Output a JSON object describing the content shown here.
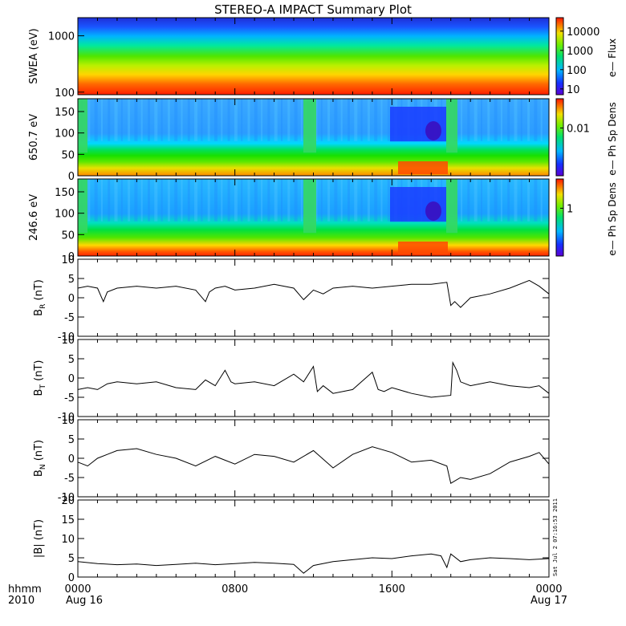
{
  "title": "STEREO-A IMPACT Summary Plot",
  "footer": {
    "left_top": "hhmm",
    "left_bottom": "2010",
    "date_start": "Aug 16",
    "date_end": "Aug 17"
  },
  "timestamp_text": "Sat Jul  2 07:16:53 2011",
  "colors": {
    "line": "#000000",
    "axis": "#000000",
    "spectrum_low": "#1a00d9",
    "spectrum_high": "#ff1400"
  },
  "chart_data": [
    {
      "id": "swea",
      "type": "heatmap",
      "ylabel": "SWEA (eV)",
      "yscale": "log",
      "ylim": [
        90,
        2100
      ],
      "yticks": [
        "100",
        "1000"
      ],
      "colorbar": {
        "label": "e—  Flux",
        "scale": "log",
        "ticks": [
          "10",
          "100",
          "1000",
          "10000"
        ]
      },
      "x_hours": [
        0,
        24
      ],
      "description_bands": [
        {
          "energy_eV": 1600,
          "level": 0.05
        },
        {
          "energy_eV": 1000,
          "level": 0.25
        },
        {
          "energy_eV": 600,
          "level": 0.45
        },
        {
          "energy_eV": 300,
          "level": 0.65
        },
        {
          "energy_eV": 150,
          "level": 0.85
        },
        {
          "energy_eV": 100,
          "level": 0.95
        }
      ]
    },
    {
      "id": "pad650",
      "type": "heatmap",
      "ylabel": "650.7  eV",
      "ylim": [
        0,
        180
      ],
      "yticks": [
        "0",
        "50",
        "100",
        "150"
      ],
      "colorbar": {
        "label": "e—  Ph Sp Dens",
        "ticks": [
          "0.01"
        ]
      },
      "x_hours": [
        0,
        24
      ]
    },
    {
      "id": "pad246",
      "type": "heatmap",
      "ylabel": "246.6  eV",
      "ylim": [
        0,
        180
      ],
      "yticks": [
        "0",
        "50",
        "100",
        "150"
      ],
      "colorbar": {
        "label": "e—  Ph Sp Dens",
        "ticks": [
          "1"
        ]
      },
      "x_hours": [
        0,
        24
      ]
    },
    {
      "id": "br",
      "type": "line",
      "ylabel": "B",
      "ylabel_sub": "R",
      "ylabel_unit": "(nT)",
      "ylim": [
        -10,
        10
      ],
      "yticks": [
        "-10",
        "-5",
        "0",
        "5",
        "10"
      ],
      "x_hours": [
        0,
        0.5,
        1,
        1.3,
        1.5,
        2,
        3,
        4,
        5,
        6,
        6.5,
        6.7,
        7,
        7.5,
        8,
        9,
        10,
        11,
        11.5,
        12,
        12.5,
        13,
        14,
        15,
        16,
        17,
        18,
        18.8,
        19,
        19.2,
        19.5,
        20,
        21,
        22,
        23,
        23.5,
        24
      ],
      "values": [
        2.5,
        3,
        2.5,
        -1,
        1.5,
        2.5,
        3,
        2.5,
        3,
        2,
        -1,
        1.5,
        2.5,
        3,
        2,
        2.5,
        3.5,
        2.5,
        -0.5,
        2,
        1,
        2.5,
        3,
        2.5,
        3,
        3.5,
        3.5,
        4,
        -2,
        -1,
        -2.5,
        0,
        1,
        2.5,
        4.5,
        3,
        1
      ]
    },
    {
      "id": "bt",
      "type": "line",
      "ylabel": "B",
      "ylabel_sub": "T",
      "ylabel_unit": "(nT)",
      "ylim": [
        -10,
        10
      ],
      "yticks": [
        "-10",
        "-5",
        "0",
        "5",
        "10"
      ],
      "x_hours": [
        0,
        0.5,
        1,
        1.5,
        2,
        3,
        4,
        5,
        6,
        6.5,
        7,
        7.5,
        7.8,
        8,
        9,
        10,
        11,
        11.5,
        12,
        12.2,
        12.5,
        13,
        14,
        15,
        15.3,
        15.6,
        16,
        17,
        18,
        19,
        19.1,
        19.3,
        19.5,
        20,
        21,
        22,
        23,
        23.5,
        24
      ],
      "values": [
        -3,
        -2.5,
        -3,
        -1.5,
        -1,
        -1.5,
        -1,
        -2.5,
        -3,
        -0.5,
        -2,
        2,
        -1,
        -1.5,
        -1,
        -2,
        1,
        -1,
        3,
        -3.5,
        -2,
        -4,
        -3,
        1.5,
        -3,
        -3.5,
        -2.5,
        -4,
        -5,
        -4.5,
        4,
        2,
        -1,
        -2,
        -1,
        -2,
        -2.5,
        -2,
        -4
      ]
    },
    {
      "id": "bn",
      "type": "line",
      "ylabel": "B",
      "ylabel_sub": "N",
      "ylabel_unit": "(nT)",
      "ylim": [
        -10,
        10
      ],
      "yticks": [
        "-10",
        "-5",
        "0",
        "5",
        "10"
      ],
      "x_hours": [
        0,
        0.5,
        1,
        1.5,
        2,
        3,
        4,
        5,
        6,
        7,
        8,
        9,
        10,
        11,
        12,
        13,
        14,
        15,
        16,
        17,
        18,
        18.8,
        19,
        19.5,
        20,
        21,
        22,
        23,
        23.5,
        24
      ],
      "values": [
        -1,
        -2,
        0,
        1,
        2,
        2.5,
        1,
        0,
        -2,
        0.5,
        -1.5,
        1,
        0.5,
        -1,
        2,
        -2.5,
        1,
        3,
        1.5,
        -1,
        -0.5,
        -2,
        -6.5,
        -5,
        -5.5,
        -4,
        -1,
        0.5,
        1.5,
        -1.5
      ]
    },
    {
      "id": "bmag",
      "type": "line",
      "ylabel": "|B| (nT)",
      "ylim": [
        0,
        20
      ],
      "yticks": [
        "0",
        "5",
        "10",
        "15",
        "20"
      ],
      "x_hours": [
        0,
        1,
        2,
        3,
        4,
        5,
        6,
        7,
        8,
        9,
        10,
        11,
        11.5,
        12,
        13,
        14,
        15,
        16,
        17,
        18,
        18.5,
        18.8,
        19,
        19.5,
        20,
        21,
        22,
        23,
        24
      ],
      "values": [
        4,
        3.5,
        3.2,
        3.4,
        3,
        3.3,
        3.6,
        3.2,
        3.5,
        3.8,
        3.6,
        3.3,
        1,
        3,
        4,
        4.5,
        5,
        4.8,
        5.5,
        6,
        5.5,
        2.5,
        6,
        4,
        4.5,
        5,
        4.8,
        4.5,
        4.8
      ]
    }
  ],
  "x_axis": {
    "ticks": [
      "0000",
      "0800",
      "1600",
      "0000"
    ],
    "tick_hours": [
      0,
      8,
      16,
      24
    ]
  }
}
